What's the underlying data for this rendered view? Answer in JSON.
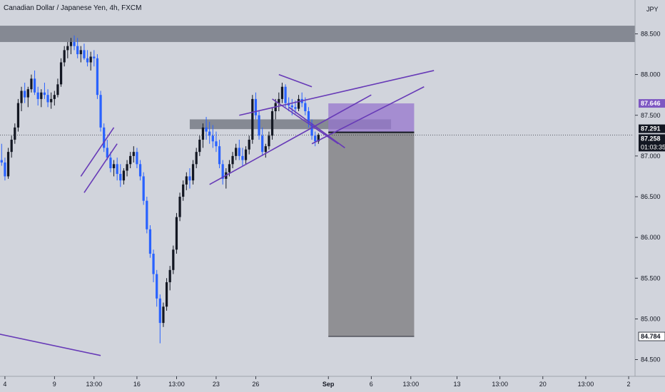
{
  "chart_data": {
    "type": "candlestick",
    "title": "Canadian Dollar / Japanese Yen, 4h, FXCM",
    "currency": "JPY",
    "ylim": [
      84.5,
      88.7
    ],
    "y_ticks": [
      "88.500",
      "88.000",
      "87.500",
      "87.000",
      "86.500",
      "86.000",
      "85.500",
      "85.000",
      "84.500"
    ],
    "y_tick_values": [
      88.5,
      88.0,
      87.5,
      87.0,
      86.5,
      86.0,
      85.5,
      85.0,
      84.5
    ],
    "x_ticks": [
      "4",
      "9",
      "13:00",
      "16",
      "13:00",
      "23",
      "26",
      "Sep",
      "6",
      "13:00",
      "13",
      "13:00",
      "20",
      "13:00",
      "2"
    ],
    "x_tick_bars": [
      1,
      16,
      28,
      41,
      53,
      65,
      77,
      99,
      112,
      124,
      138,
      151,
      164,
      177,
      190
    ],
    "bars_visible": 192,
    "last_close": 87.258,
    "candles": [
      [
        86.95,
        87.15,
        86.88,
        86.92
      ],
      [
        86.92,
        86.98,
        86.7,
        86.75
      ],
      [
        86.75,
        87.1,
        86.72,
        87.05
      ],
      [
        87.05,
        87.25,
        86.98,
        87.2
      ],
      [
        87.2,
        87.4,
        87.15,
        87.35
      ],
      [
        87.35,
        87.7,
        87.3,
        87.65
      ],
      [
        87.65,
        87.85,
        87.55,
        87.8
      ],
      [
        87.8,
        87.9,
        87.65,
        87.72
      ],
      [
        87.72,
        87.85,
        87.6,
        87.82
      ],
      [
        87.82,
        88.0,
        87.78,
        87.95
      ],
      [
        87.95,
        88.05,
        87.75,
        87.78
      ],
      [
        87.78,
        87.85,
        87.62,
        87.7
      ],
      [
        87.7,
        87.82,
        87.6,
        87.78
      ],
      [
        87.78,
        87.9,
        87.7,
        87.75
      ],
      [
        87.75,
        87.82,
        87.6,
        87.66
      ],
      [
        87.66,
        87.78,
        87.58,
        87.7
      ],
      [
        87.7,
        87.8,
        87.62,
        87.75
      ],
      [
        87.75,
        87.95,
        87.72,
        87.88
      ],
      [
        87.88,
        88.2,
        87.85,
        88.15
      ],
      [
        88.15,
        88.35,
        88.1,
        88.3
      ],
      [
        88.3,
        88.4,
        88.2,
        88.35
      ],
      [
        88.35,
        88.45,
        88.25,
        88.4
      ],
      [
        88.4,
        88.48,
        88.3,
        88.35
      ],
      [
        88.35,
        88.45,
        88.2,
        88.25
      ],
      [
        88.25,
        88.35,
        88.15,
        88.3
      ],
      [
        88.3,
        88.38,
        88.18,
        88.2
      ],
      [
        88.2,
        88.3,
        88.1,
        88.15
      ],
      [
        88.15,
        88.28,
        88.05,
        88.22
      ],
      [
        88.22,
        88.3,
        88.1,
        88.2
      ],
      [
        88.2,
        88.25,
        87.7,
        87.75
      ],
      [
        87.75,
        87.8,
        87.3,
        87.35
      ],
      [
        87.35,
        87.4,
        87.05,
        87.1
      ],
      [
        87.1,
        87.2,
        86.95,
        86.98
      ],
      [
        86.98,
        87.05,
        86.8,
        86.85
      ],
      [
        86.85,
        86.95,
        86.75,
        86.9
      ],
      [
        86.9,
        86.98,
        86.7,
        86.78
      ],
      [
        86.78,
        86.9,
        86.62,
        86.7
      ],
      [
        86.7,
        86.85,
        86.65,
        86.82
      ],
      [
        86.82,
        86.95,
        86.75,
        86.9
      ],
      [
        86.9,
        87.05,
        86.85,
        87.0
      ],
      [
        87.0,
        87.12,
        86.92,
        87.05
      ],
      [
        87.05,
        87.1,
        86.85,
        86.9
      ],
      [
        86.9,
        86.95,
        86.7,
        86.75
      ],
      [
        86.75,
        86.8,
        86.4,
        86.45
      ],
      [
        86.45,
        86.5,
        86.05,
        86.1
      ],
      [
        86.1,
        86.15,
        85.75,
        85.8
      ],
      [
        85.8,
        85.85,
        85.45,
        85.55
      ],
      [
        85.55,
        85.6,
        85.15,
        85.25
      ],
      [
        85.25,
        85.3,
        84.7,
        84.95
      ],
      [
        84.95,
        85.2,
        84.9,
        85.15
      ],
      [
        85.15,
        85.5,
        85.1,
        85.45
      ],
      [
        85.45,
        85.65,
        85.35,
        85.6
      ],
      [
        85.6,
        85.9,
        85.55,
        85.85
      ],
      [
        85.85,
        86.3,
        85.8,
        86.25
      ],
      [
        86.25,
        86.55,
        86.2,
        86.5
      ],
      [
        86.5,
        86.7,
        86.45,
        86.65
      ],
      [
        86.65,
        86.8,
        86.58,
        86.75
      ],
      [
        86.75,
        86.85,
        86.6,
        86.7
      ],
      [
        86.7,
        86.95,
        86.65,
        86.9
      ],
      [
        86.9,
        87.1,
        86.85,
        87.05
      ],
      [
        87.05,
        87.25,
        87.0,
        87.2
      ],
      [
        87.2,
        87.4,
        87.1,
        87.35
      ],
      [
        87.35,
        87.48,
        87.2,
        87.3
      ],
      [
        87.3,
        87.42,
        87.15,
        87.25
      ],
      [
        87.25,
        87.38,
        87.1,
        87.18
      ],
      [
        87.18,
        87.3,
        87.05,
        87.12
      ],
      [
        87.12,
        87.2,
        86.85,
        86.9
      ],
      [
        86.9,
        86.95,
        86.65,
        86.72
      ],
      [
        86.72,
        86.85,
        86.6,
        86.8
      ],
      [
        86.8,
        86.95,
        86.75,
        86.9
      ],
      [
        86.9,
        87.05,
        86.85,
        87.0
      ],
      [
        87.0,
        87.15,
        86.95,
        87.1
      ],
      [
        87.1,
        87.2,
        86.95,
        87.0
      ],
      [
        87.0,
        87.1,
        86.88,
        86.95
      ],
      [
        86.95,
        87.12,
        86.9,
        87.08
      ],
      [
        87.08,
        87.25,
        87.02,
        87.2
      ],
      [
        87.2,
        87.75,
        87.15,
        87.7
      ],
      [
        87.7,
        87.78,
        87.45,
        87.5
      ],
      [
        87.5,
        87.55,
        87.2,
        87.25
      ],
      [
        87.25,
        87.35,
        87.0,
        87.05
      ],
      [
        87.05,
        87.15,
        86.98,
        87.12
      ],
      [
        87.12,
        87.3,
        87.08,
        87.25
      ],
      [
        87.25,
        87.6,
        87.2,
        87.55
      ],
      [
        87.55,
        87.7,
        87.45,
        87.65
      ],
      [
        87.65,
        87.78,
        87.55,
        87.7
      ],
      [
        87.7,
        87.9,
        87.65,
        87.85
      ],
      [
        87.85,
        87.88,
        87.6,
        87.65
      ],
      [
        87.65,
        87.72,
        87.55,
        87.62
      ],
      [
        87.62,
        87.7,
        87.5,
        87.6
      ],
      [
        87.6,
        87.68,
        87.52,
        87.58
      ],
      [
        87.58,
        87.75,
        87.55,
        87.7
      ],
      [
        87.7,
        87.78,
        87.6,
        87.65
      ],
      [
        87.65,
        87.72,
        87.5,
        87.55
      ],
      [
        87.55,
        87.6,
        87.35,
        87.4
      ],
      [
        87.4,
        87.45,
        87.2,
        87.25
      ],
      [
        87.25,
        87.3,
        87.12,
        87.18
      ],
      [
        87.18,
        87.28,
        87.15,
        87.258
      ]
    ],
    "trendlines": [
      {
        "b1": 24,
        "p1": 86.75,
        "b2": 34,
        "p2": 87.35
      },
      {
        "b1": 25,
        "p1": 86.55,
        "b2": 35,
        "p2": 87.15
      },
      {
        "b1": -5,
        "p1": 84.85,
        "b2": 30,
        "p2": 84.55
      },
      {
        "b1": 63,
        "p1": 86.65,
        "b2": 112,
        "p2": 87.75
      },
      {
        "b1": 72,
        "p1": 87.5,
        "b2": 131,
        "p2": 88.05
      },
      {
        "b1": 84,
        "p1": 88.0,
        "b2": 94,
        "p2": 87.85
      },
      {
        "b1": 82,
        "p1": 87.7,
        "b2": 102,
        "p2": 87.15
      },
      {
        "b1": 87,
        "p1": 87.6,
        "b2": 104,
        "p2": 87.1
      },
      {
        "b1": 94,
        "p1": 87.15,
        "b2": 128,
        "p2": 87.85
      }
    ],
    "zones": [
      {
        "b1": -5,
        "b2": 198,
        "top": 88.6,
        "bottom": 88.4
      },
      {
        "b1": 57,
        "b2": 118,
        "top": 87.45,
        "bottom": 87.33
      }
    ],
    "position": {
      "b1": 99,
      "b2": 125,
      "entry": 87.291,
      "target": 87.646,
      "stop": 84.784
    },
    "price_tags": [
      {
        "label": "87.646",
        "value": 87.646,
        "kind": "target"
      },
      {
        "label": "87.291",
        "value": 87.291,
        "kind": "entry"
      },
      {
        "label": "87.258",
        "value": 87.258,
        "kind": "last"
      },
      {
        "label": "84.784",
        "value": 84.784,
        "kind": "stop"
      }
    ],
    "countdown": "01:03:35",
    "colors": {
      "background": "#d1d4dc",
      "bull": "#131722",
      "bear": "#2962ff",
      "trend": "#673ab7",
      "zone": "#787b86",
      "target_fill": "#9575cd",
      "stop_fill": "#8c8c8f",
      "text": "#131722",
      "tag_bg": "#131722",
      "target_tag": "#7e57c2"
    }
  }
}
